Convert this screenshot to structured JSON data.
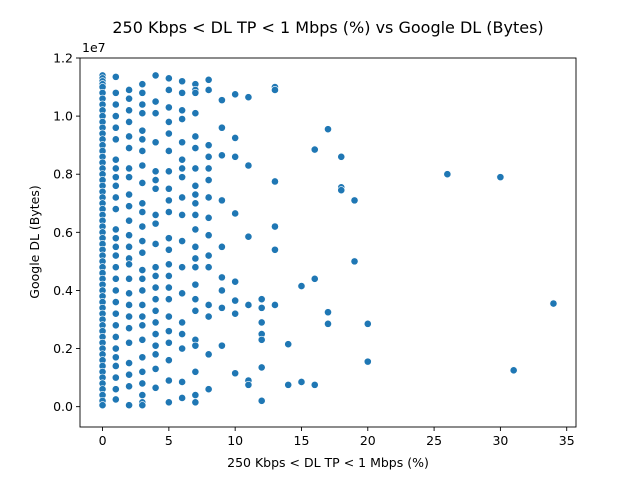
{
  "chart_data": {
    "type": "scatter",
    "title": "250 Kbps < DL TP < 1 Mbps (%) vs Google DL (Bytes)",
    "xlabel": "250 Kbps < DL TP < 1 Mbps (%)",
    "ylabel": "Google DL (Bytes)",
    "y_offset_label": "1e7",
    "xlim": [
      -1.7,
      35.7
    ],
    "ylim": [
      -700000,
      12000000
    ],
    "x_ticks": [
      0,
      5,
      10,
      15,
      20,
      25,
      30,
      35
    ],
    "x_tick_labels": [
      "0",
      "5",
      "10",
      "15",
      "20",
      "25",
      "30",
      "35"
    ],
    "y_ticks": [
      0,
      2000000,
      4000000,
      6000000,
      8000000,
      10000000,
      12000000
    ],
    "y_tick_labels": [
      "0.0",
      "0.2",
      "0.4",
      "0.6",
      "0.8",
      "1.0",
      "1.2"
    ],
    "grid": false,
    "point_color": "#1f77b4",
    "points": [
      [
        0,
        11400000
      ],
      [
        0,
        11300000
      ],
      [
        0,
        11200000
      ],
      [
        0,
        11100000
      ],
      [
        0,
        11000000
      ],
      [
        0,
        10800000
      ],
      [
        0,
        10600000
      ],
      [
        0,
        10400000
      ],
      [
        0,
        10200000
      ],
      [
        0,
        10000000
      ],
      [
        0,
        9800000
      ],
      [
        0,
        9600000
      ],
      [
        0,
        9400000
      ],
      [
        0,
        9200000
      ],
      [
        0,
        9000000
      ],
      [
        0,
        8800000
      ],
      [
        0,
        8600000
      ],
      [
        0,
        8400000
      ],
      [
        0,
        8200000
      ],
      [
        0,
        8000000
      ],
      [
        0,
        7800000
      ],
      [
        0,
        7600000
      ],
      [
        0,
        7400000
      ],
      [
        0,
        7200000
      ],
      [
        0,
        7000000
      ],
      [
        0,
        6800000
      ],
      [
        0,
        6600000
      ],
      [
        0,
        6400000
      ],
      [
        0,
        6200000
      ],
      [
        0,
        6000000
      ],
      [
        0,
        5800000
      ],
      [
        0,
        5600000
      ],
      [
        0,
        5400000
      ],
      [
        0,
        5200000
      ],
      [
        0,
        5000000
      ],
      [
        0,
        4800000
      ],
      [
        0,
        4600000
      ],
      [
        0,
        4400000
      ],
      [
        0,
        4200000
      ],
      [
        0,
        4000000
      ],
      [
        0,
        3800000
      ],
      [
        0,
        3600000
      ],
      [
        0,
        3400000
      ],
      [
        0,
        3200000
      ],
      [
        0,
        3000000
      ],
      [
        0,
        2800000
      ],
      [
        0,
        2600000
      ],
      [
        0,
        2400000
      ],
      [
        0,
        2200000
      ],
      [
        0,
        2000000
      ],
      [
        0,
        1800000
      ],
      [
        0,
        1600000
      ],
      [
        0,
        1400000
      ],
      [
        0,
        1200000
      ],
      [
        0,
        1000000
      ],
      [
        0,
        800000
      ],
      [
        0,
        600000
      ],
      [
        0,
        400000
      ],
      [
        0,
        200000
      ],
      [
        0,
        50000
      ],
      [
        1,
        11350000
      ],
      [
        1,
        10800000
      ],
      [
        1,
        10400000
      ],
      [
        1,
        10000000
      ],
      [
        1,
        9600000
      ],
      [
        1,
        9200000
      ],
      [
        1,
        8500000
      ],
      [
        1,
        8200000
      ],
      [
        1,
        7900000
      ],
      [
        1,
        7600000
      ],
      [
        1,
        7200000
      ],
      [
        1,
        6800000
      ],
      [
        1,
        6100000
      ],
      [
        1,
        5800000
      ],
      [
        1,
        5500000
      ],
      [
        1,
        5200000
      ],
      [
        1,
        4800000
      ],
      [
        1,
        4400000
      ],
      [
        1,
        4000000
      ],
      [
        1,
        3600000
      ],
      [
        1,
        3200000
      ],
      [
        1,
        2800000
      ],
      [
        1,
        2400000
      ],
      [
        1,
        2000000
      ],
      [
        1,
        1700000
      ],
      [
        1,
        1400000
      ],
      [
        1,
        1000000
      ],
      [
        1,
        600000
      ],
      [
        1,
        250000
      ],
      [
        2,
        10900000
      ],
      [
        2,
        10600000
      ],
      [
        2,
        10200000
      ],
      [
        2,
        9800000
      ],
      [
        2,
        9300000
      ],
      [
        2,
        8900000
      ],
      [
        2,
        8200000
      ],
      [
        2,
        7900000
      ],
      [
        2,
        7300000
      ],
      [
        2,
        6900000
      ],
      [
        2,
        6400000
      ],
      [
        2,
        5900000
      ],
      [
        2,
        5500000
      ],
      [
        2,
        5100000
      ],
      [
        2,
        4900000
      ],
      [
        2,
        4400000
      ],
      [
        2,
        3900000
      ],
      [
        2,
        3500000
      ],
      [
        2,
        3100000
      ],
      [
        2,
        2700000
      ],
      [
        2,
        2200000
      ],
      [
        2,
        1500000
      ],
      [
        2,
        1100000
      ],
      [
        2,
        700000
      ],
      [
        2,
        50000
      ],
      [
        3,
        11100000
      ],
      [
        3,
        10800000
      ],
      [
        3,
        10400000
      ],
      [
        3,
        10100000
      ],
      [
        3,
        9500000
      ],
      [
        3,
        9200000
      ],
      [
        3,
        8800000
      ],
      [
        3,
        8300000
      ],
      [
        3,
        7700000
      ],
      [
        3,
        7000000
      ],
      [
        3,
        6700000
      ],
      [
        3,
        6200000
      ],
      [
        3,
        5700000
      ],
      [
        3,
        5300000
      ],
      [
        3,
        4700000
      ],
      [
        3,
        4400000
      ],
      [
        3,
        4000000
      ],
      [
        3,
        3500000
      ],
      [
        3,
        3100000
      ],
      [
        3,
        2800000
      ],
      [
        3,
        2300000
      ],
      [
        3,
        1700000
      ],
      [
        3,
        1200000
      ],
      [
        3,
        800000
      ],
      [
        3,
        400000
      ],
      [
        3,
        150000
      ],
      [
        3,
        50000
      ],
      [
        4,
        11400000
      ],
      [
        4,
        10500000
      ],
      [
        4,
        10100000
      ],
      [
        4,
        9100000
      ],
      [
        4,
        8100000
      ],
      [
        4,
        7800000
      ],
      [
        4,
        7500000
      ],
      [
        4,
        6600000
      ],
      [
        4,
        6300000
      ],
      [
        4,
        5600000
      ],
      [
        4,
        4800000
      ],
      [
        4,
        4500000
      ],
      [
        4,
        4100000
      ],
      [
        4,
        3700000
      ],
      [
        4,
        3300000
      ],
      [
        4,
        2900000
      ],
      [
        4,
        2500000
      ],
      [
        4,
        2100000
      ],
      [
        4,
        1800000
      ],
      [
        4,
        1300000
      ],
      [
        4,
        650000
      ],
      [
        5,
        11300000
      ],
      [
        5,
        10900000
      ],
      [
        5,
        10300000
      ],
      [
        5,
        9800000
      ],
      [
        5,
        9400000
      ],
      [
        5,
        8800000
      ],
      [
        5,
        8100000
      ],
      [
        5,
        7500000
      ],
      [
        5,
        7100000
      ],
      [
        5,
        6700000
      ],
      [
        5,
        5800000
      ],
      [
        5,
        5400000
      ],
      [
        5,
        4900000
      ],
      [
        5,
        4500000
      ],
      [
        5,
        4100000
      ],
      [
        5,
        3700000
      ],
      [
        5,
        3100000
      ],
      [
        5,
        2600000
      ],
      [
        5,
        2200000
      ],
      [
        5,
        1600000
      ],
      [
        5,
        900000
      ],
      [
        5,
        150000
      ],
      [
        6,
        11200000
      ],
      [
        6,
        10800000
      ],
      [
        6,
        10200000
      ],
      [
        6,
        9900000
      ],
      [
        6,
        9100000
      ],
      [
        6,
        8500000
      ],
      [
        6,
        8200000
      ],
      [
        6,
        7900000
      ],
      [
        6,
        7200000
      ],
      [
        6,
        6600000
      ],
      [
        6,
        5700000
      ],
      [
        6,
        4800000
      ],
      [
        6,
        3900000
      ],
      [
        6,
        2900000
      ],
      [
        6,
        2500000
      ],
      [
        6,
        2000000
      ],
      [
        6,
        850000
      ],
      [
        6,
        300000
      ],
      [
        7,
        11100000
      ],
      [
        7,
        10900000
      ],
      [
        7,
        10800000
      ],
      [
        7,
        10100000
      ],
      [
        7,
        9300000
      ],
      [
        7,
        8900000
      ],
      [
        7,
        8200000
      ],
      [
        7,
        7600000
      ],
      [
        7,
        7300000
      ],
      [
        7,
        7000000
      ],
      [
        7,
        6600000
      ],
      [
        7,
        6100000
      ],
      [
        7,
        5500000
      ],
      [
        7,
        5100000
      ],
      [
        7,
        4800000
      ],
      [
        7,
        4200000
      ],
      [
        7,
        3700000
      ],
      [
        7,
        3300000
      ],
      [
        7,
        2300000
      ],
      [
        7,
        2100000
      ],
      [
        7,
        1200000
      ],
      [
        7,
        400000
      ],
      [
        7,
        150000
      ],
      [
        8,
        11250000
      ],
      [
        8,
        10900000
      ],
      [
        8,
        9000000
      ],
      [
        8,
        8600000
      ],
      [
        8,
        8200000
      ],
      [
        8,
        7800000
      ],
      [
        8,
        7200000
      ],
      [
        8,
        6500000
      ],
      [
        8,
        5900000
      ],
      [
        8,
        5200000
      ],
      [
        8,
        4800000
      ],
      [
        8,
        3500000
      ],
      [
        8,
        3100000
      ],
      [
        8,
        1800000
      ],
      [
        8,
        600000
      ],
      [
        9,
        10550000
      ],
      [
        9,
        9600000
      ],
      [
        9,
        8650000
      ],
      [
        9,
        7100000
      ],
      [
        9,
        5500000
      ],
      [
        9,
        4450000
      ],
      [
        9,
        4000000
      ],
      [
        9,
        3400000
      ],
      [
        9,
        2100000
      ],
      [
        10,
        10750000
      ],
      [
        10,
        9250000
      ],
      [
        10,
        8600000
      ],
      [
        10,
        6650000
      ],
      [
        10,
        4300000
      ],
      [
        10,
        3650000
      ],
      [
        10,
        3200000
      ],
      [
        10,
        1150000
      ],
      [
        11,
        10650000
      ],
      [
        11,
        8300000
      ],
      [
        11,
        5850000
      ],
      [
        11,
        3500000
      ],
      [
        11,
        900000
      ],
      [
        11,
        750000
      ],
      [
        12,
        3700000
      ],
      [
        12,
        3400000
      ],
      [
        12,
        2900000
      ],
      [
        12,
        2500000
      ],
      [
        12,
        2300000
      ],
      [
        12,
        1350000
      ],
      [
        12,
        200000
      ],
      [
        13,
        11000000
      ],
      [
        13,
        10900000
      ],
      [
        13,
        7750000
      ],
      [
        13,
        6200000
      ],
      [
        13,
        5400000
      ],
      [
        13,
        3500000
      ],
      [
        14,
        2150000
      ],
      [
        14,
        750000
      ],
      [
        15,
        4150000
      ],
      [
        15,
        850000
      ],
      [
        16,
        8850000
      ],
      [
        16,
        4400000
      ],
      [
        16,
        750000
      ],
      [
        17,
        9550000
      ],
      [
        17,
        3250000
      ],
      [
        17,
        2850000
      ],
      [
        18,
        8600000
      ],
      [
        18,
        7550000
      ],
      [
        18,
        7450000
      ],
      [
        19,
        7100000
      ],
      [
        19,
        5000000
      ],
      [
        20,
        2850000
      ],
      [
        20,
        1550000
      ],
      [
        26,
        8000000
      ],
      [
        30,
        7900000
      ],
      [
        31,
        1250000
      ],
      [
        34,
        3550000
      ]
    ]
  }
}
